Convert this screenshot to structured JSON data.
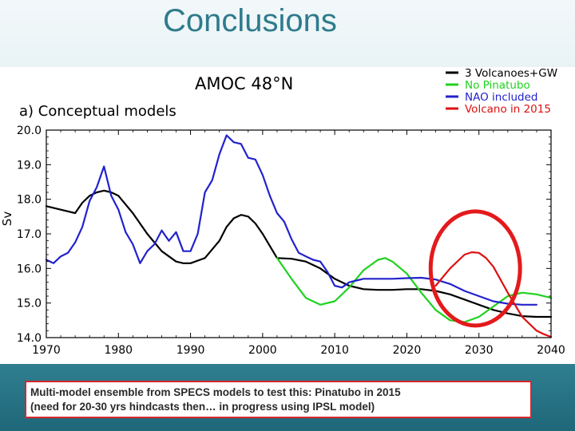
{
  "slide": {
    "title": "Conclusions"
  },
  "caption": {
    "line1": "Multi-model ensemble from SPECS models to test this: Pinatubo in 2015",
    "line2": "(need for 20-30 yrs hindcasts then… in progress using IPSL model)"
  },
  "chart_data": {
    "type": "line",
    "title": "AMOC  48°N",
    "panel_label": "a) Conceptual models",
    "xlabel": "",
    "ylabel": "Sv",
    "xlim": [
      1970,
      2040
    ],
    "ylim": [
      14.0,
      20.0
    ],
    "xticks": [
      1970,
      1980,
      1990,
      2000,
      2010,
      2020,
      2030,
      2040
    ],
    "yticks": [
      "14.0",
      "15.0",
      "16.0",
      "17.0",
      "18.0",
      "19.0",
      "20.0"
    ],
    "legend_position": "top-right",
    "annotation": {
      "type": "circle",
      "color": "#e31a1c",
      "center": [
        2029.5,
        16.0
      ],
      "rx_years": 6.2,
      "ry_sv": 1.65
    },
    "series": [
      {
        "name": "3 Volcanoes+GW",
        "color": "#000000",
        "x": [
          1970,
          1972,
          1974,
          1975,
          1976,
          1977,
          1978,
          1979,
          1980,
          1982,
          1984,
          1986,
          1988,
          1989,
          1990,
          1992,
          1994,
          1995,
          1996,
          1997,
          1998,
          1999,
          2000,
          2001,
          2002,
          2004,
          2006,
          2008,
          2010,
          2012,
          2014,
          2016,
          2018,
          2020,
          2022,
          2024,
          2026,
          2028,
          2030,
          2032,
          2034,
          2036,
          2038,
          2040
        ],
        "y": [
          17.8,
          17.7,
          17.6,
          17.9,
          18.1,
          18.2,
          18.25,
          18.2,
          18.1,
          17.6,
          17.0,
          16.5,
          16.2,
          16.15,
          16.15,
          16.3,
          16.8,
          17.2,
          17.45,
          17.55,
          17.5,
          17.3,
          17.0,
          16.65,
          16.3,
          16.28,
          16.2,
          16.0,
          15.7,
          15.5,
          15.4,
          15.38,
          15.38,
          15.4,
          15.4,
          15.35,
          15.25,
          15.1,
          14.95,
          14.8,
          14.7,
          14.62,
          14.6,
          14.6
        ]
      },
      {
        "name": "No Pinatubo",
        "color": "#1fd21f",
        "x": [
          2002,
          2004,
          2006,
          2008,
          2010,
          2012,
          2014,
          2016,
          2017,
          2018,
          2020,
          2022,
          2024,
          2026,
          2028,
          2030,
          2032,
          2034,
          2036,
          2038,
          2040
        ],
        "y": [
          16.3,
          15.7,
          15.15,
          14.95,
          15.05,
          15.45,
          15.95,
          16.25,
          16.3,
          16.2,
          15.85,
          15.3,
          14.8,
          14.5,
          14.45,
          14.6,
          14.9,
          15.2,
          15.3,
          15.25,
          15.15
        ]
      },
      {
        "name": "NAO included",
        "color": "#2222cc",
        "x": [
          1970,
          1971,
          1972,
          1973,
          1974,
          1975,
          1976,
          1977,
          1978,
          1979,
          1980,
          1981,
          1982,
          1983,
          1984,
          1985,
          1986,
          1987,
          1988,
          1989,
          1990,
          1991,
          1992,
          1993,
          1994,
          1995,
          1996,
          1997,
          1998,
          1999,
          2000,
          2001,
          2002,
          2003,
          2004,
          2005,
          2006,
          2007,
          2008,
          2009,
          2010,
          2011,
          2012,
          2013,
          2014,
          2015,
          2016,
          2018,
          2020,
          2022,
          2024,
          2026,
          2028,
          2030,
          2032,
          2034,
          2036,
          2038
        ],
        "y": [
          16.25,
          16.15,
          16.35,
          16.45,
          16.75,
          17.2,
          17.95,
          18.35,
          18.95,
          18.1,
          17.7,
          17.05,
          16.7,
          16.15,
          16.5,
          16.7,
          17.1,
          16.8,
          17.05,
          16.5,
          16.5,
          17.0,
          18.2,
          18.55,
          19.3,
          19.85,
          19.65,
          19.6,
          19.2,
          19.15,
          18.7,
          18.1,
          17.6,
          17.35,
          16.85,
          16.45,
          16.35,
          16.25,
          16.2,
          15.9,
          15.5,
          15.45,
          15.6,
          15.65,
          15.7,
          15.7,
          15.7,
          15.7,
          15.72,
          15.73,
          15.68,
          15.55,
          15.35,
          15.2,
          15.05,
          14.98,
          14.95,
          14.95
        ]
      },
      {
        "name": "Volcano in 2015",
        "color": "#dd1111",
        "x": [
          2024,
          2026,
          2028,
          2029,
          2030,
          2031,
          2032,
          2034,
          2036,
          2038,
          2039,
          2040
        ],
        "y": [
          15.5,
          16.0,
          16.4,
          16.47,
          16.45,
          16.3,
          16.05,
          15.3,
          14.6,
          14.2,
          14.1,
          14.02
        ]
      }
    ]
  }
}
